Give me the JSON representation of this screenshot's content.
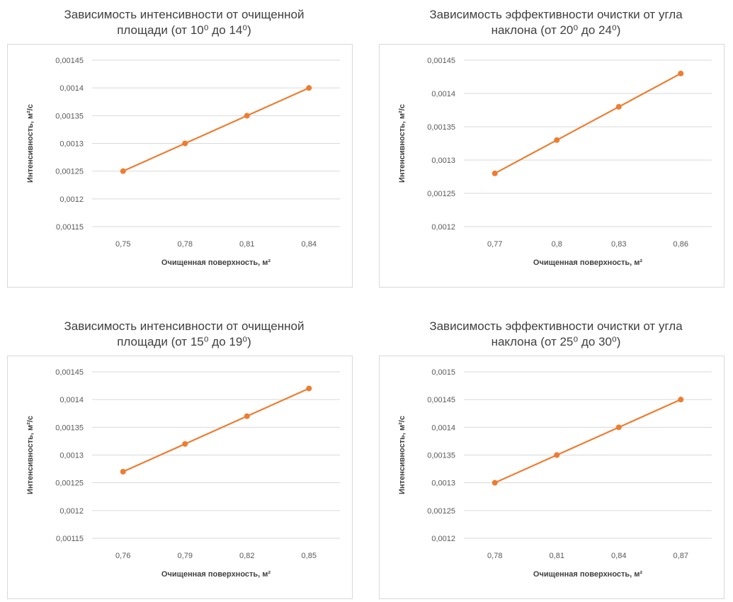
{
  "colors": {
    "line": "#ed7d31",
    "grid": "#d9d9d9",
    "frame": "#d9d9d9"
  },
  "chart_data": [
    {
      "type": "line",
      "title": "Зависимость интенсивности от очищенной",
      "title_line2": "площади (от 10⁰ до 14⁰)",
      "xlabel": "Очищенная поверхность, м²",
      "ylabel": "Интенсивность, м²/с",
      "categories": [
        "0,75",
        "0,78",
        "0,81",
        "0,84"
      ],
      "values": [
        0.00125,
        0.0013,
        0.00135,
        0.0014
      ],
      "yticks": [
        "0,00115",
        "0,0012",
        "0,00125",
        "0,0013",
        "0,00135",
        "0,0014",
        "0,00145"
      ],
      "ylim": [
        0.00115,
        0.00145
      ],
      "grid": true
    },
    {
      "type": "line",
      "title": "Зависимость эффективности очистки от угла",
      "title_line2": "наклона (от 20⁰ до 24⁰)",
      "xlabel": "Очищенная поверхность, м²",
      "ylabel": "Интенсивность, м²/с",
      "categories": [
        "0,77",
        "0,8",
        "0,83",
        "0,86"
      ],
      "values": [
        0.00128,
        0.00133,
        0.00138,
        0.00143
      ],
      "yticks": [
        "0,0012",
        "0,00125",
        "0,0013",
        "0,00135",
        "0,0014",
        "0,00145"
      ],
      "ylim": [
        0.0012,
        0.00145
      ],
      "grid": true
    },
    {
      "type": "line",
      "title": "Зависимость интенсивности от очищенной",
      "title_line2": "площади (от 15⁰ до 19⁰)",
      "xlabel": "Очищенная поверхность, м²",
      "ylabel": "Интенсивность, м²/с",
      "categories": [
        "0,76",
        "0,79",
        "0,82",
        "0,85"
      ],
      "values": [
        0.00127,
        0.00132,
        0.00137,
        0.00142
      ],
      "yticks": [
        "0,00115",
        "0,0012",
        "0,00125",
        "0,0013",
        "0,00135",
        "0,0014",
        "0,00145"
      ],
      "ylim": [
        0.00115,
        0.00145
      ],
      "grid": true
    },
    {
      "type": "line",
      "title": "Зависимость эффективности очистки от угла",
      "title_line2": "наклона (от 25⁰ до 30⁰)",
      "xlabel": "Очищенная поверхность, м²",
      "ylabel": "Интенсивность, м²/с",
      "categories": [
        "0,78",
        "0,81",
        "0,84",
        "0,87"
      ],
      "values": [
        0.0013,
        0.00135,
        0.0014,
        0.00145
      ],
      "yticks": [
        "0,0012",
        "0,00125",
        "0,0013",
        "0,00135",
        "0,0014",
        "0,00145",
        "0,0015"
      ],
      "ylim": [
        0.0012,
        0.0015
      ],
      "grid": true
    }
  ]
}
